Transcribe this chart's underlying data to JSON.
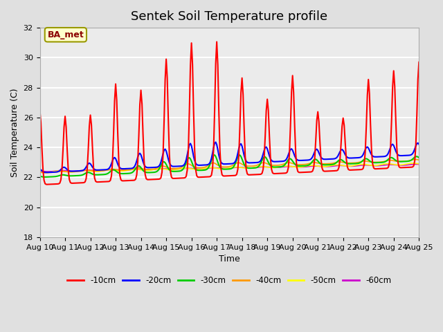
{
  "title": "Sentek Soil Temperature profile",
  "xlabel": "Time",
  "ylabel": "Soil Temperature (C)",
  "ylim": [
    18,
    32
  ],
  "xlim": [
    0,
    15
  ],
  "xtick_labels": [
    "Aug 10",
    "Aug 11",
    "Aug 12",
    "Aug 13",
    "Aug 14",
    "Aug 15",
    "Aug 16",
    "Aug 17",
    "Aug 18",
    "Aug 19",
    "Aug 20",
    "Aug 21",
    "Aug 22",
    "Aug 23",
    "Aug 24",
    "Aug 25"
  ],
  "ytick_values": [
    18,
    20,
    22,
    24,
    26,
    28,
    30,
    32
  ],
  "legend_label": "BA_met",
  "legend_box_facecolor": "#ffffcc",
  "legend_box_edgecolor": "#999900",
  "legend_text_color": "#8B0000",
  "fig_facecolor": "#e0e0e0",
  "plot_facecolor": "#ebebeb",
  "series_colors": [
    "#ff0000",
    "#0000ff",
    "#00cc00",
    "#ff9900",
    "#ffff00",
    "#cc00cc"
  ],
  "series_labels": [
    "-10cm",
    "-20cm",
    "-30cm",
    "-40cm",
    "-50cm",
    "-60cm"
  ],
  "title_fontsize": 13,
  "axis_label_fontsize": 9,
  "tick_fontsize": 8,
  "grid_color": "#ffffff",
  "grid_linewidth": 1.5
}
